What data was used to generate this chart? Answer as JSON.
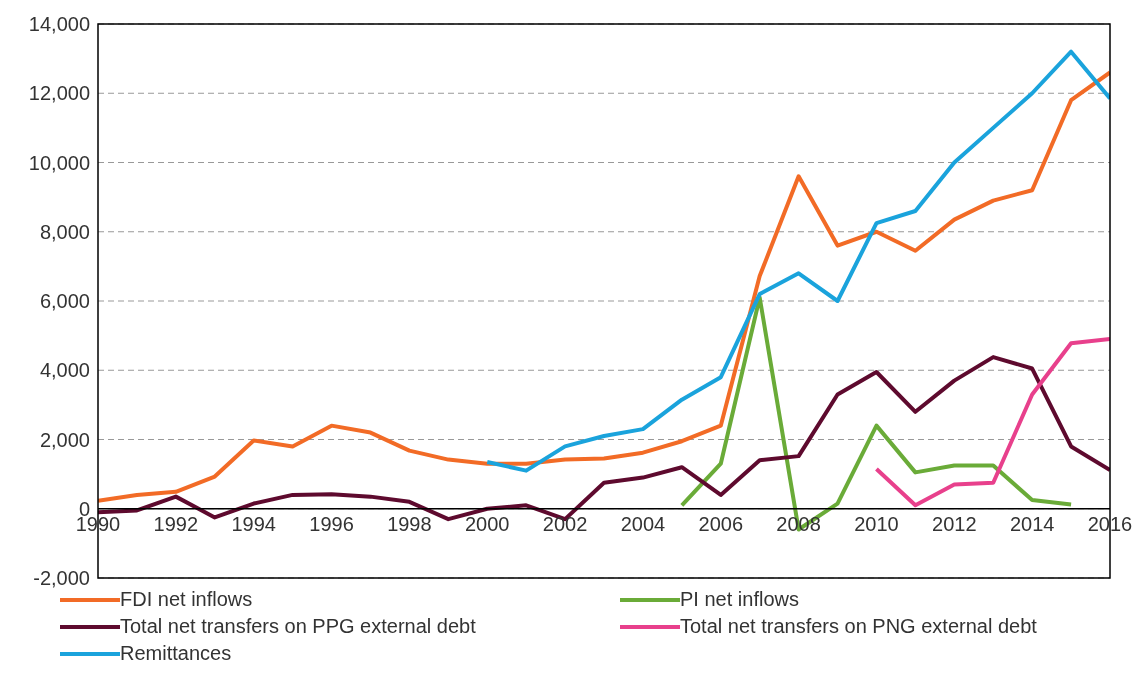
{
  "chart_data": {
    "type": "line",
    "x": [
      1990,
      1991,
      1992,
      1993,
      1994,
      1995,
      1996,
      1997,
      1998,
      1999,
      2000,
      2001,
      2002,
      2003,
      2004,
      2005,
      2006,
      2007,
      2008,
      2009,
      2010,
      2011,
      2012,
      2013,
      2014,
      2015,
      2016
    ],
    "series": [
      {
        "name": "FDI net inflows",
        "color": "#f26b26",
        "values": [
          230,
          400,
          490,
          930,
          1970,
          1800,
          2400,
          2200,
          1680,
          1420,
          1300,
          1300,
          1420,
          1450,
          1620,
          1950,
          2400,
          6720,
          9600,
          7600,
          8000,
          7450,
          8350,
          8900,
          9200,
          11800,
          12600
        ]
      },
      {
        "name": "PI net inflows",
        "color": "#6aab38",
        "values": [
          null,
          null,
          null,
          null,
          null,
          null,
          null,
          null,
          null,
          null,
          null,
          null,
          null,
          null,
          null,
          100,
          1300,
          6100,
          -600,
          150,
          2400,
          1050,
          1250,
          1250,
          250,
          120,
          null
        ]
      },
      {
        "name": "Total net transfers on PPG external debt",
        "color": "#5e0a2e",
        "values": [
          -100,
          -50,
          350,
          -250,
          150,
          400,
          420,
          350,
          200,
          -300,
          0,
          100,
          -300,
          750,
          900,
          1200,
          400,
          1400,
          1520,
          3300,
          3950,
          2800,
          3700,
          4380,
          4050,
          1800,
          1120
        ]
      },
      {
        "name": "Total net transfers on PNG external debt",
        "color": "#e8408c",
        "values": [
          null,
          null,
          null,
          null,
          null,
          null,
          null,
          null,
          null,
          null,
          null,
          null,
          null,
          null,
          null,
          null,
          null,
          null,
          null,
          null,
          1150,
          100,
          700,
          750,
          3300,
          4780,
          4900
        ]
      },
      {
        "name": "Remittances",
        "color": "#1aa3dc",
        "values": [
          null,
          null,
          null,
          null,
          null,
          null,
          null,
          null,
          null,
          null,
          1350,
          1100,
          1800,
          2100,
          2300,
          3150,
          3800,
          6200,
          6800,
          6000,
          8250,
          8600,
          10000,
          11000,
          12000,
          13200,
          11850
        ]
      }
    ],
    "xlim": [
      1990,
      2016
    ],
    "xticks": [
      1990,
      1992,
      1994,
      1996,
      1998,
      2000,
      2002,
      2004,
      2006,
      2008,
      2010,
      2012,
      2014,
      2016
    ],
    "ylim": [
      -2000,
      14000
    ],
    "yticks": [
      {
        "value": -2000,
        "label": "-2,000"
      },
      0,
      {
        "value": 2000,
        "label": "2,000"
      },
      {
        "value": 4000,
        "label": "4,000"
      },
      {
        "value": 6000,
        "label": "6,000"
      },
      {
        "value": 8000,
        "label": "8,000"
      },
      {
        "value": 10000,
        "label": "10,000"
      },
      {
        "value": 12000,
        "label": "12,000"
      },
      {
        "value": 14000,
        "label": "14,000"
      }
    ],
    "grid": "y",
    "legend": "bottom",
    "marker": "none",
    "line_style": "solid"
  }
}
